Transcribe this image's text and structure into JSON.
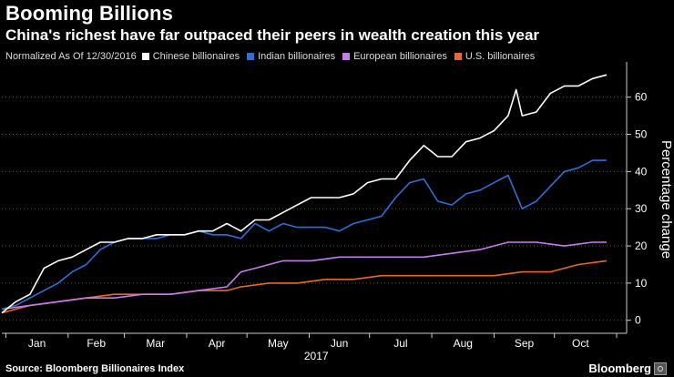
{
  "header": {
    "title": "Booming Billions",
    "subtitle": "China's richest have far outpaced their peers in wealth creation this year"
  },
  "legend": {
    "note": "Normalized As Of 12/30/2016"
  },
  "footer": {
    "source": "Source: Bloomberg Billionaires Index",
    "brand": "Bloomberg"
  },
  "chart_data": {
    "type": "line",
    "title": "Booming Billions",
    "subtitle": "China's richest have far outpaced their peers in wealth creation this year",
    "note": "Normalized As Of 12/30/2016",
    "xlabel": "2017",
    "ylabel": "Percentage change",
    "x_tick_labels": [
      "Jan",
      "Feb",
      "Mar",
      "Apr",
      "May",
      "Jun",
      "Jul",
      "Aug",
      "Sep",
      "Oct"
    ],
    "x_year_label": "2017",
    "x_range": [
      "2016-12-30",
      "2017-10-27"
    ],
    "ylim": [
      -3,
      68
    ],
    "y_ticks": [
      0,
      10,
      20,
      30,
      40,
      50,
      60
    ],
    "y_axis_position": "right",
    "grid": "horizontal dotted",
    "legend_position": "top-left",
    "series": [
      {
        "name": "Chinese billionaires",
        "color": "#ffffff",
        "x": [
          "2016-12-30",
          "2017-01-06",
          "2017-01-13",
          "2017-01-20",
          "2017-01-27",
          "2017-02-03",
          "2017-02-10",
          "2017-02-17",
          "2017-02-24",
          "2017-03-03",
          "2017-03-10",
          "2017-03-17",
          "2017-03-24",
          "2017-03-31",
          "2017-04-07",
          "2017-04-14",
          "2017-04-21",
          "2017-04-28",
          "2017-05-05",
          "2017-05-12",
          "2017-05-19",
          "2017-05-26",
          "2017-06-02",
          "2017-06-09",
          "2017-06-16",
          "2017-06-23",
          "2017-06-30",
          "2017-07-07",
          "2017-07-14",
          "2017-07-21",
          "2017-07-28",
          "2017-08-04",
          "2017-08-11",
          "2017-08-18",
          "2017-08-25",
          "2017-09-01",
          "2017-09-08",
          "2017-09-12",
          "2017-09-15",
          "2017-09-22",
          "2017-09-29",
          "2017-10-06",
          "2017-10-13",
          "2017-10-20",
          "2017-10-27"
        ],
        "values": [
          2,
          5,
          7,
          14,
          16,
          17,
          19,
          21,
          21,
          22,
          22,
          23,
          23,
          23,
          24,
          24,
          26,
          24,
          27,
          27,
          29,
          31,
          33,
          33,
          33,
          34,
          37,
          38,
          38,
          43,
          47,
          44,
          44,
          48,
          49,
          51,
          55,
          62,
          55,
          56,
          61,
          63,
          63,
          65,
          66
        ]
      },
      {
        "name": "Indian billionaires",
        "color": "#2f6fd6",
        "x": [
          "2016-12-30",
          "2017-01-06",
          "2017-01-13",
          "2017-01-20",
          "2017-01-27",
          "2017-02-03",
          "2017-02-10",
          "2017-02-17",
          "2017-02-24",
          "2017-03-03",
          "2017-03-10",
          "2017-03-17",
          "2017-03-24",
          "2017-03-31",
          "2017-04-07",
          "2017-04-14",
          "2017-04-21",
          "2017-04-28",
          "2017-05-05",
          "2017-05-12",
          "2017-05-19",
          "2017-05-26",
          "2017-06-02",
          "2017-06-09",
          "2017-06-16",
          "2017-06-23",
          "2017-06-30",
          "2017-07-07",
          "2017-07-14",
          "2017-07-21",
          "2017-07-28",
          "2017-08-04",
          "2017-08-11",
          "2017-08-18",
          "2017-08-25",
          "2017-09-01",
          "2017-09-08",
          "2017-09-15",
          "2017-09-22",
          "2017-09-29",
          "2017-10-06",
          "2017-10-13",
          "2017-10-20",
          "2017-10-27"
        ],
        "values": [
          3,
          4,
          6,
          8,
          10,
          13,
          15,
          19,
          21,
          22,
          22,
          22,
          23,
          23,
          24,
          23,
          23,
          22,
          26,
          24,
          26,
          25,
          25,
          25,
          24,
          26,
          27,
          28,
          33,
          37,
          38,
          32,
          31,
          34,
          35,
          37,
          39,
          30,
          32,
          36,
          40,
          41,
          43,
          43
        ]
      },
      {
        "name": "European billionaires",
        "color": "#c77de8",
        "x": [
          "2016-12-30",
          "2017-01-13",
          "2017-01-27",
          "2017-02-10",
          "2017-02-24",
          "2017-03-10",
          "2017-03-24",
          "2017-04-07",
          "2017-04-21",
          "2017-04-28",
          "2017-05-05",
          "2017-05-19",
          "2017-06-02",
          "2017-06-16",
          "2017-06-30",
          "2017-07-14",
          "2017-07-28",
          "2017-08-11",
          "2017-08-25",
          "2017-09-08",
          "2017-09-22",
          "2017-10-06",
          "2017-10-20",
          "2017-10-27"
        ],
        "values": [
          3,
          4,
          5,
          6,
          6,
          7,
          7,
          8,
          9,
          13,
          14,
          16,
          16,
          17,
          17,
          17,
          17,
          18,
          19,
          21,
          21,
          20,
          21,
          21
        ]
      },
      {
        "name": "U.S. billionaires",
        "color": "#e8692b",
        "x": [
          "2016-12-30",
          "2017-01-13",
          "2017-01-27",
          "2017-02-10",
          "2017-02-24",
          "2017-03-10",
          "2017-03-24",
          "2017-04-07",
          "2017-04-21",
          "2017-04-28",
          "2017-05-12",
          "2017-05-26",
          "2017-06-09",
          "2017-06-23",
          "2017-07-07",
          "2017-07-21",
          "2017-08-04",
          "2017-08-18",
          "2017-09-01",
          "2017-09-15",
          "2017-09-29",
          "2017-10-13",
          "2017-10-27"
        ],
        "values": [
          2,
          4,
          5,
          6,
          7,
          7,
          7,
          8,
          8,
          9,
          10,
          10,
          11,
          11,
          12,
          12,
          12,
          12,
          12,
          13,
          13,
          15,
          16
        ]
      }
    ]
  }
}
